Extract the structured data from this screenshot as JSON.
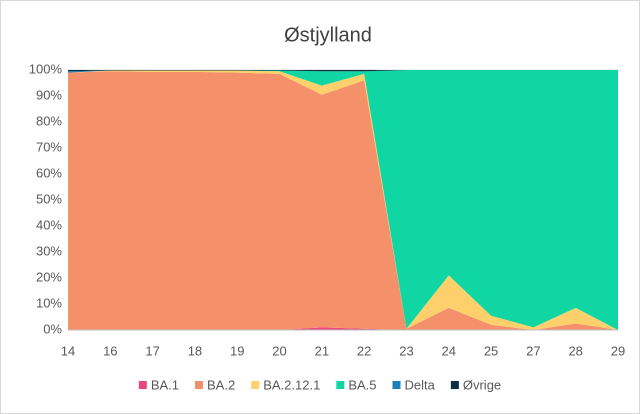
{
  "chart_data": {
    "type": "stacked_area",
    "title": "Østjylland",
    "categories": [
      "14",
      "16",
      "17",
      "18",
      "19",
      "20",
      "21",
      "22",
      "23",
      "24",
      "25",
      "27",
      "28",
      "29"
    ],
    "series": [
      {
        "name": "BA.1",
        "color": "#e8467c",
        "values": [
          0,
          0,
          0,
          0,
          0,
          0,
          1,
          0.5,
          0,
          0,
          0,
          0,
          0,
          0
        ]
      },
      {
        "name": "BA.2",
        "color": "#f4906a",
        "values": [
          99,
          99.5,
          99.3,
          99.3,
          99,
          98.5,
          89.5,
          95.5,
          0.5,
          8.5,
          2,
          0,
          2.5,
          0
        ]
      },
      {
        "name": "BA.2.12.1",
        "color": "#fdd06c",
        "values": [
          0,
          0.3,
          0.5,
          0.5,
          0.8,
          1,
          3.5,
          2.5,
          0,
          12.5,
          3.5,
          1,
          6,
          0
        ]
      },
      {
        "name": "BA.5",
        "color": "#0fd6a2",
        "values": [
          0,
          0,
          0,
          0,
          0,
          0.3,
          5.5,
          1,
          99.5,
          79,
          94.5,
          99,
          91.5,
          100
        ]
      },
      {
        "name": "Delta",
        "color": "#1f7fb8",
        "values": [
          0.5,
          0,
          0,
          0,
          0,
          0,
          0,
          0,
          0,
          0,
          0,
          0,
          0,
          0
        ]
      },
      {
        "name": "Øvrige",
        "color": "#0b2f40",
        "values": [
          0.5,
          0.2,
          0.2,
          0.2,
          0.2,
          0.2,
          0.5,
          0.5,
          0,
          0,
          0,
          0,
          0,
          0
        ]
      }
    ],
    "ylim": [
      0,
      100
    ],
    "yticks": [
      {
        "value": 0,
        "label": "0%"
      },
      {
        "value": 10,
        "label": "10%"
      },
      {
        "value": 20,
        "label": "20%"
      },
      {
        "value": 30,
        "label": "30%"
      },
      {
        "value": 40,
        "label": "40%"
      },
      {
        "value": 50,
        "label": "50%"
      },
      {
        "value": 60,
        "label": "60%"
      },
      {
        "value": 70,
        "label": "70%"
      },
      {
        "value": 80,
        "label": "80%"
      },
      {
        "value": 90,
        "label": "90%"
      },
      {
        "value": 100,
        "label": "100%"
      }
    ],
    "grid": true,
    "legend": "bottom"
  }
}
